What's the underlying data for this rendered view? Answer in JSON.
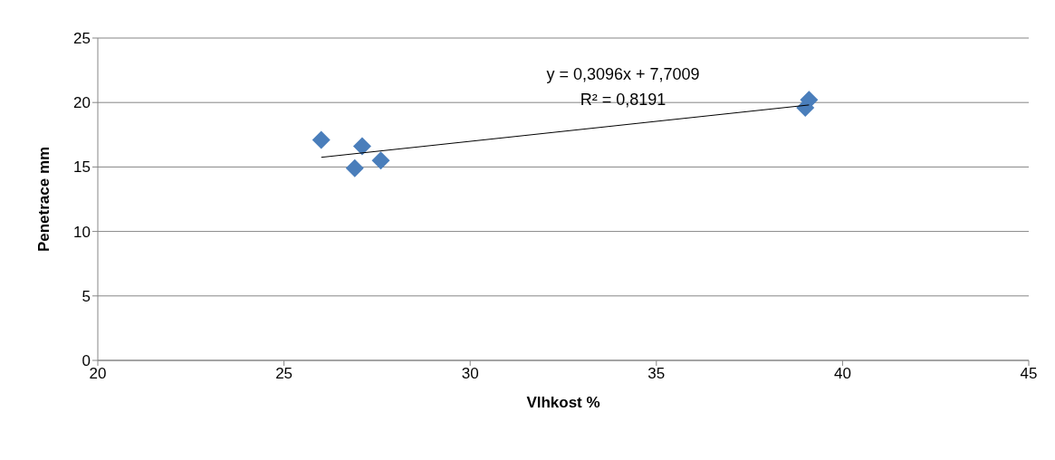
{
  "chart_data": {
    "type": "scatter",
    "xlabel": "Vlhkost %",
    "ylabel": "Penetrace mm",
    "grid": "y",
    "xlim": [
      20,
      45
    ],
    "xticks": [
      20,
      25,
      30,
      35,
      40,
      45
    ],
    "ylim": [
      0,
      25
    ],
    "yticks": [
      0,
      5,
      10,
      15,
      20,
      25
    ],
    "series": [
      {
        "marker": "diamond",
        "color": "#4a7ebb",
        "x": [
          26.0,
          26.9,
          27.1,
          27.6,
          39.0,
          39.1
        ],
        "values": [
          17.1,
          14.9,
          16.6,
          15.5,
          19.6,
          20.2
        ]
      },
      {
        "type": "line",
        "marker": "none",
        "color": "#000000",
        "line_style": "solid",
        "x": [
          26.0,
          39.1
        ],
        "values": [
          15.75,
          19.81
        ]
      }
    ],
    "annotations": [
      "y = 0,3096x + 7,7009",
      "R² = 0,8191"
    ]
  }
}
